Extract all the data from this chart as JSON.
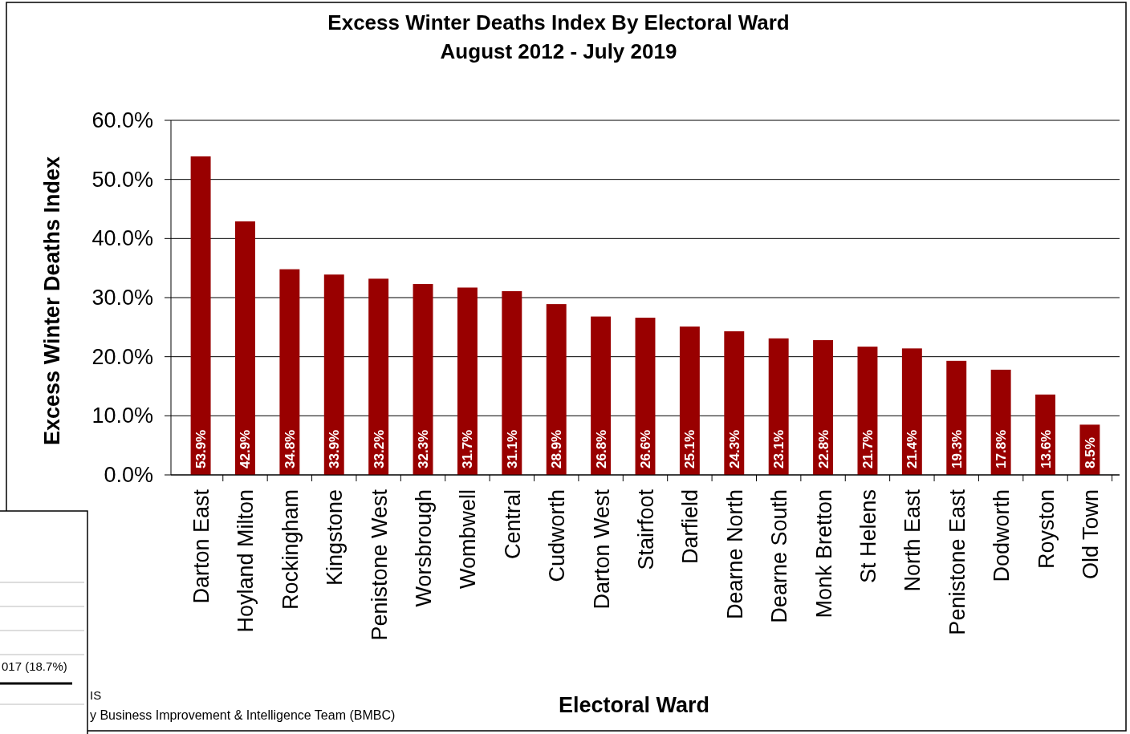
{
  "chart_data": {
    "type": "bar",
    "title": "Excess Winter Deaths Index By Electoral Ward",
    "subtitle": "August 2012 - July 2019",
    "xlabel": "Electoral Ward",
    "ylabel": "Excess Winter Deaths Index",
    "categories": [
      "Darton East",
      "Hoyland Milton",
      "Rockingham",
      "Kingstone",
      "Penistone West",
      "Worsbrough",
      "Wombwell",
      "Central",
      "Cudworth",
      "Darton West",
      "Stairfoot",
      "Darfield",
      "Dearne North",
      "Dearne South",
      "Monk Bretton",
      "St Helens",
      "North East",
      "Penistone East",
      "Dodworth",
      "Royston",
      "Old Town"
    ],
    "values": [
      53.9,
      42.9,
      34.8,
      33.9,
      33.2,
      32.3,
      31.7,
      31.1,
      28.9,
      26.8,
      26.6,
      25.1,
      24.3,
      23.1,
      22.8,
      21.7,
      21.4,
      19.3,
      17.8,
      13.6,
      8.5
    ],
    "value_labels": [
      "53.9%",
      "42.9%",
      "34.8%",
      "33.9%",
      "33.2%",
      "32.3%",
      "31.7%",
      "31.1%",
      "28.9%",
      "26.8%",
      "26.6%",
      "25.1%",
      "24.3%",
      "23.1%",
      "22.8%",
      "21.7%",
      "21.4%",
      "19.3%",
      "17.8%",
      "13.6%",
      "8.5%"
    ],
    "color": "#990000",
    "ylim": [
      0,
      60
    ],
    "yticks": [
      {
        "value": 0,
        "label": "0.0%"
      },
      {
        "value": 10,
        "label": "10.0%"
      },
      {
        "value": 20,
        "label": "20.0%"
      },
      {
        "value": 30,
        "label": "30.0%"
      },
      {
        "value": 40,
        "label": "40.0%"
      },
      {
        "value": 50,
        "label": "50.0%"
      },
      {
        "value": 60,
        "label": "60.0%"
      }
    ],
    "grid": "y",
    "annotations": [
      "017 (18.7%)",
      "IS",
      "y Business Improvement & Intelligence Team (BMBC)"
    ]
  }
}
